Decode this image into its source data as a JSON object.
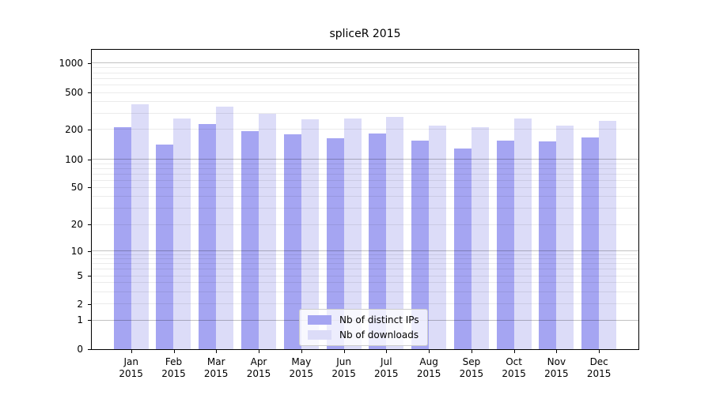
{
  "title": "spliceR 2015",
  "chart_data": {
    "type": "bar",
    "title": "spliceR 2015",
    "categories": [
      "Jan 2015",
      "Feb 2015",
      "Mar 2015",
      "Apr 2015",
      "May 2015",
      "Jun 2015",
      "Jul 2015",
      "Aug 2015",
      "Sep 2015",
      "Oct 2015",
      "Nov 2015",
      "Dec 2015"
    ],
    "series": [
      {
        "name": "Nb of distinct IPs",
        "color": "#a5a5f2",
        "values": [
          210,
          140,
          228,
          190,
          178,
          162,
          180,
          155,
          128,
          155,
          152,
          166
        ]
      },
      {
        "name": "Nb of downloads",
        "color": "#dcdcf8",
        "values": [
          378,
          264,
          354,
          296,
          256,
          260,
          272,
          219,
          209,
          260,
          220,
          248
        ]
      }
    ],
    "xlabel": "",
    "ylabel": "",
    "yscale": "symlog",
    "yticks": [
      0,
      1,
      2,
      5,
      10,
      20,
      50,
      100,
      200,
      500,
      1000
    ],
    "ytick_labels": [
      "0",
      "1",
      "2",
      "5",
      "10",
      "20",
      "50",
      "100",
      "200",
      "500",
      "1000"
    ],
    "ylim": [
      0,
      1150
    ],
    "grid": true,
    "grid_over_bars": true,
    "legend_position": "lower center",
    "colors": {
      "distinct_ips_bar": "#a5a5f2",
      "downloads_bar": "#dcdcf8",
      "axis": "#000000",
      "major_gridline": "#c2c2c2",
      "minor_gridline": "#ececec",
      "legend_border": "#cccccc"
    }
  }
}
